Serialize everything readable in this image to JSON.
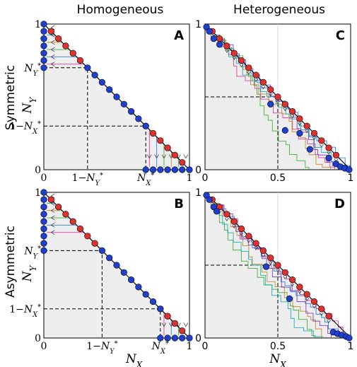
{
  "figure": {
    "col_titles": [
      "Homogeneous",
      "Heterogeneous"
    ],
    "row_titles": [
      "Symmetric",
      "Asymmetric"
    ],
    "y_axis_label": "N_Y",
    "x_axis_label": "N_X"
  },
  "chart_data": [
    {
      "panel": "A",
      "type": "line",
      "title": "Homogeneous",
      "letter": "A",
      "xlim": [
        0,
        1
      ],
      "ylim": [
        0,
        1
      ],
      "x_tick_labels": [
        "0",
        "1−N_Y*",
        "N_X*",
        "1"
      ],
      "y_tick_labels": [
        "0",
        "1−N_X*",
        "N_Y*",
        "1"
      ],
      "xlabel": "",
      "ylabel": "N_Y",
      "N_X_star": 0.7,
      "N_Y_star": 0.7,
      "diagonal": [
        [
          0,
          1
        ],
        [
          1,
          0
        ]
      ],
      "dashed_lines": [
        {
          "points": [
            [
              0,
              0.7
            ],
            [
              0.3,
              0.7
            ],
            [
              0.3,
              0
            ]
          ]
        },
        {
          "points": [
            [
              0,
              0.3
            ],
            [
              0.7,
              0.3
            ],
            [
              0.7,
              0
            ]
          ]
        }
      ],
      "red_points_x": [
        0.05,
        0.1,
        0.15,
        0.2,
        0.25,
        0.7,
        0.75,
        0.8,
        0.85,
        0.9,
        0.95
      ],
      "blue_points_x": [
        0.3,
        0.35,
        0.4,
        0.45,
        0.5,
        0.55,
        0.6,
        0.65,
        0.7
      ],
      "blue_axis_points_y": [
        0.7,
        0.75,
        0.8,
        0.85,
        0.9,
        0.95,
        1.0
      ],
      "blue_axis_points_x": [
        0.7,
        0.75,
        0.8,
        0.85,
        0.9,
        0.95,
        1.0
      ],
      "flow": "homogeneous"
    },
    {
      "panel": "B",
      "type": "line",
      "title": "",
      "letter": "B",
      "xlim": [
        0,
        1
      ],
      "ylim": [
        0,
        1
      ],
      "x_tick_labels": [
        "0",
        "1−N_Y*",
        "N_X*",
        "1"
      ],
      "y_tick_labels": [
        "0",
        "1−N_X*",
        "N_Y*",
        "1"
      ],
      "xlabel": "N_X",
      "ylabel": "N_Y",
      "N_X_star": 0.8,
      "N_Y_star": 0.6,
      "diagonal": [
        [
          0,
          1
        ],
        [
          1,
          0
        ]
      ],
      "dashed_lines": [
        {
          "points": [
            [
              0,
              0.6
            ],
            [
              0.4,
              0.6
            ],
            [
              0.4,
              0
            ]
          ]
        },
        {
          "points": [
            [
              0,
              0.2
            ],
            [
              0.8,
              0.2
            ],
            [
              0.8,
              0
            ]
          ]
        }
      ],
      "red_points_x": [
        0.05,
        0.1,
        0.15,
        0.2,
        0.25,
        0.3,
        0.35,
        0.8,
        0.85,
        0.9,
        0.95
      ],
      "blue_points_x": [
        0.4,
        0.45,
        0.5,
        0.55,
        0.6,
        0.65,
        0.7,
        0.75,
        0.8
      ],
      "blue_axis_points_y": [
        0.6,
        0.65,
        0.7,
        0.75,
        0.8,
        0.85,
        0.9,
        0.95,
        1.0
      ],
      "blue_axis_points_x": [
        0.8,
        0.85,
        0.9,
        0.95,
        1.0
      ],
      "flow": "homogeneous"
    },
    {
      "panel": "C",
      "type": "line",
      "title": "Heterogeneous",
      "letter": "C",
      "xlim": [
        0,
        1
      ],
      "ylim": [
        0,
        1
      ],
      "x_tick_labels": [
        "0",
        "0.5",
        "1"
      ],
      "y_tick_labels": [
        "0",
        "1"
      ],
      "xlabel": "",
      "ylabel": "",
      "dashed_lines": [
        {
          "points": [
            [
              0,
              0.5
            ],
            [
              0.5,
              0.5
            ],
            [
              0.5,
              0
            ]
          ]
        }
      ],
      "red_points_x": [
        0.05,
        0.1,
        0.15,
        0.2,
        0.25,
        0.3,
        0.35,
        0.4,
        0.45,
        0.5,
        0.55,
        0.6,
        0.65,
        0.7,
        0.75,
        0.8,
        0.85,
        0.9
      ],
      "blue_points": [
        [
          0.01,
          0.98
        ],
        [
          0.03,
          0.95
        ],
        [
          0.06,
          0.9
        ],
        [
          0.1,
          0.86
        ],
        [
          0.45,
          0.45
        ],
        [
          0.55,
          0.27
        ],
        [
          0.65,
          0.25
        ],
        [
          0.72,
          0.14
        ],
        [
          0.85,
          0.08
        ],
        [
          0.9,
          0.04
        ],
        [
          0.93,
          0.02
        ],
        [
          0.96,
          0.01
        ],
        [
          0.99,
          0.0
        ]
      ],
      "flow": "heterogeneous"
    },
    {
      "panel": "D",
      "type": "line",
      "title": "",
      "letter": "D",
      "xlim": [
        0,
        1
      ],
      "ylim": [
        0,
        1
      ],
      "x_tick_labels": [
        "0",
        "0.5",
        "1"
      ],
      "y_tick_labels": [
        "0",
        "1"
      ],
      "xlabel": "N_X",
      "ylabel": "",
      "dashed_lines": [
        {
          "points": [
            [
              0,
              0.5
            ],
            [
              0.5,
              0.5
            ],
            [
              0.5,
              0
            ]
          ]
        }
      ],
      "red_points_x": [
        0.05,
        0.1,
        0.15,
        0.2,
        0.25,
        0.3,
        0.35,
        0.4,
        0.45,
        0.5,
        0.55,
        0.6,
        0.65,
        0.7,
        0.75,
        0.8,
        0.85
      ],
      "blue_points": [
        [
          0.01,
          0.98
        ],
        [
          0.03,
          0.95
        ],
        [
          0.06,
          0.9
        ],
        [
          0.08,
          0.87
        ],
        [
          0.42,
          0.49
        ],
        [
          0.58,
          0.27
        ],
        [
          0.88,
          0.04
        ],
        [
          0.91,
          0.03
        ],
        [
          0.94,
          0.02
        ],
        [
          0.97,
          0.01
        ],
        [
          0.99,
          0.0
        ]
      ],
      "flow": "heterogeneous"
    }
  ],
  "colors": {
    "red": "#e03030",
    "blue": "#1f3fd0",
    "shade": "#eeeeee",
    "flow": [
      "#e040a0",
      "#3080e0",
      "#40b040",
      "#c09030",
      "#20b0b0",
      "#8040c0"
    ]
  }
}
